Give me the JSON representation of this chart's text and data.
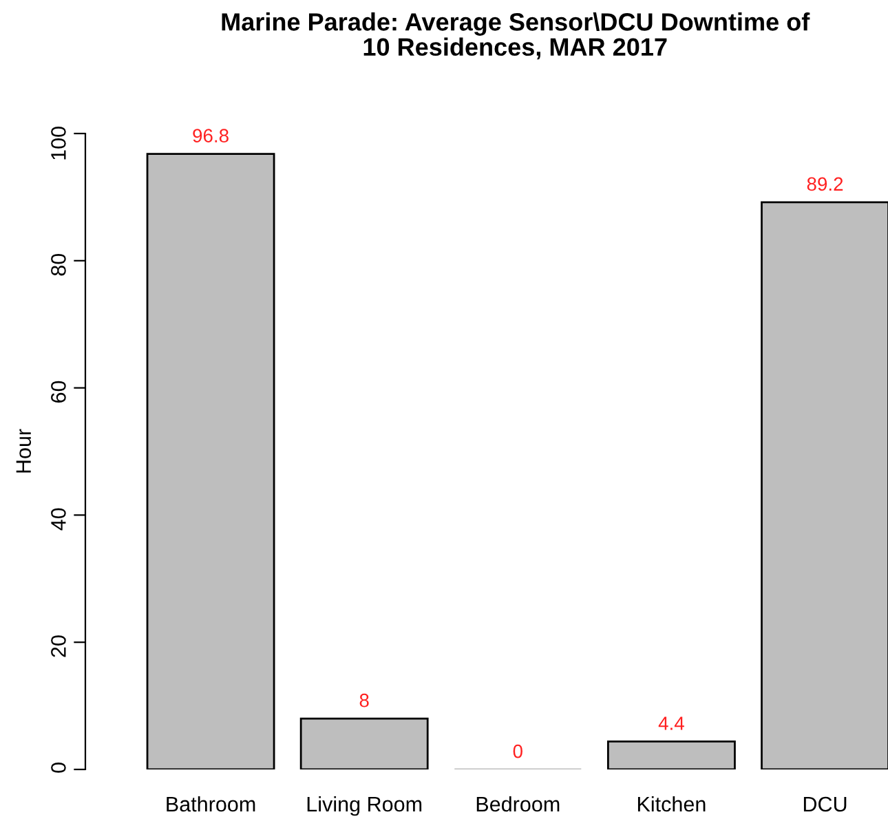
{
  "chart_data": {
    "type": "bar",
    "title": "Marine Parade: Average Sensor\\DCU Downtime of\n10 Residences, MAR 2017",
    "ylabel": "Hour",
    "categories": [
      "Bathroom",
      "Living Room",
      "Bedroom",
      "Kitchen",
      "DCU"
    ],
    "values": [
      96.8,
      8,
      0,
      4.4,
      89.2
    ],
    "color": "#bebebe",
    "ylim": [
      0,
      100
    ],
    "yticks": [
      0,
      20,
      40,
      60,
      80,
      100
    ],
    "data_labels": true,
    "grid": false,
    "legend": false
  }
}
